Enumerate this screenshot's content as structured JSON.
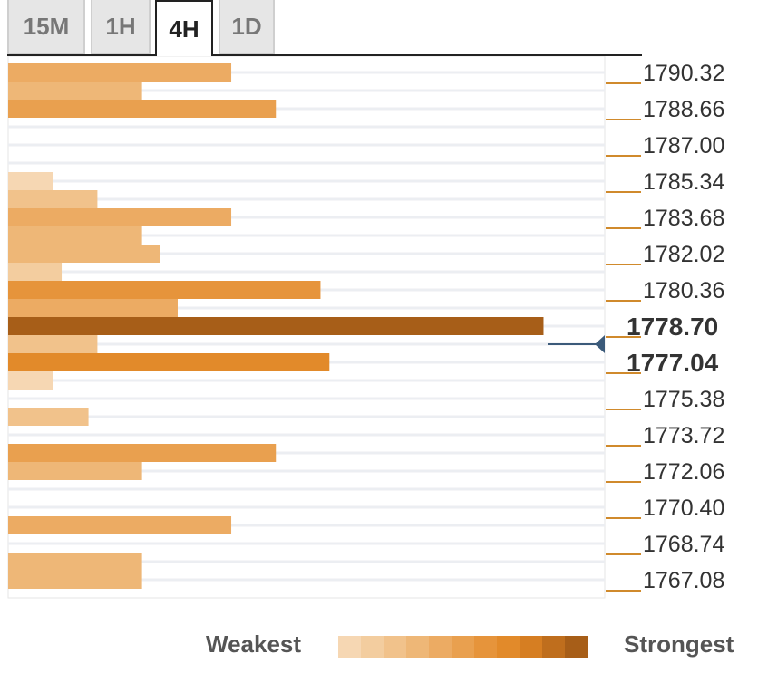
{
  "tabs": [
    {
      "label": "15M",
      "active": false
    },
    {
      "label": "1H",
      "active": false
    },
    {
      "label": "4H",
      "active": true
    },
    {
      "label": "1D",
      "active": false
    }
  ],
  "legend": {
    "weakest_label": "Weakest",
    "strongest_label": "Strongest",
    "scale_colors": [
      "#f6d7b3",
      "#f3cd9f",
      "#f1c28b",
      "#eeb777",
      "#ecab63",
      "#e9a04f",
      "#e6943b",
      "#e28a2a",
      "#d67e22",
      "#bf6e1d",
      "#a75e18"
    ]
  },
  "chart_data": {
    "type": "bar",
    "orientation": "horizontal",
    "description": "Confluence levels (strength of price level)",
    "price_ticks": [
      "1790.32",
      "1788.66",
      "1787.00",
      "1785.34",
      "1783.68",
      "1782.02",
      "1780.36",
      "1778.70",
      "1777.04",
      "1775.38",
      "1773.72",
      "1772.06",
      "1770.40",
      "1768.74",
      "1767.08"
    ],
    "highlighted_ticks": [
      "1778.70",
      "1777.04"
    ],
    "current_price_marker_between": [
      "1778.70",
      "1777.04"
    ],
    "bars": [
      {
        "level": 1790.32,
        "strength": 5
      },
      {
        "level": 1789.49,
        "strength": 3
      },
      {
        "level": 1788.66,
        "strength": 6
      },
      {
        "level": 1785.34,
        "strength": 1
      },
      {
        "level": 1784.51,
        "strength": 2
      },
      {
        "level": 1783.68,
        "strength": 5
      },
      {
        "level": 1782.85,
        "strength": 3
      },
      {
        "level": 1782.02,
        "strength": 3.4
      },
      {
        "level": 1781.19,
        "strength": 1.2
      },
      {
        "level": 1780.36,
        "strength": 7
      },
      {
        "level": 1779.53,
        "strength": 3.8
      },
      {
        "level": 1778.7,
        "strength": 12
      },
      {
        "level": 1777.87,
        "strength": 2
      },
      {
        "level": 1777.04,
        "strength": 7.2
      },
      {
        "level": 1776.21,
        "strength": 1
      },
      {
        "level": 1774.55,
        "strength": 1.8
      },
      {
        "level": 1772.89,
        "strength": 6
      },
      {
        "level": 1772.06,
        "strength": 3
      },
      {
        "level": 1769.57,
        "strength": 5
      },
      {
        "level": 1767.91,
        "strength": 3
      },
      {
        "level": 1767.08,
        "strength": 3
      }
    ],
    "bar_colors": {
      "1": "#f6d7b3",
      "1.2": "#f3cd9f",
      "1.8": "#f1c28b",
      "2": "#f1c28b",
      "3": "#eeb777",
      "3.4": "#eeb777",
      "3.8": "#ecab63",
      "5": "#ecab63",
      "6": "#e9a04f",
      "7": "#e6943b",
      "7.2": "#e28a2a",
      "12": "#a75e18"
    },
    "max_strength": 12.6
  }
}
